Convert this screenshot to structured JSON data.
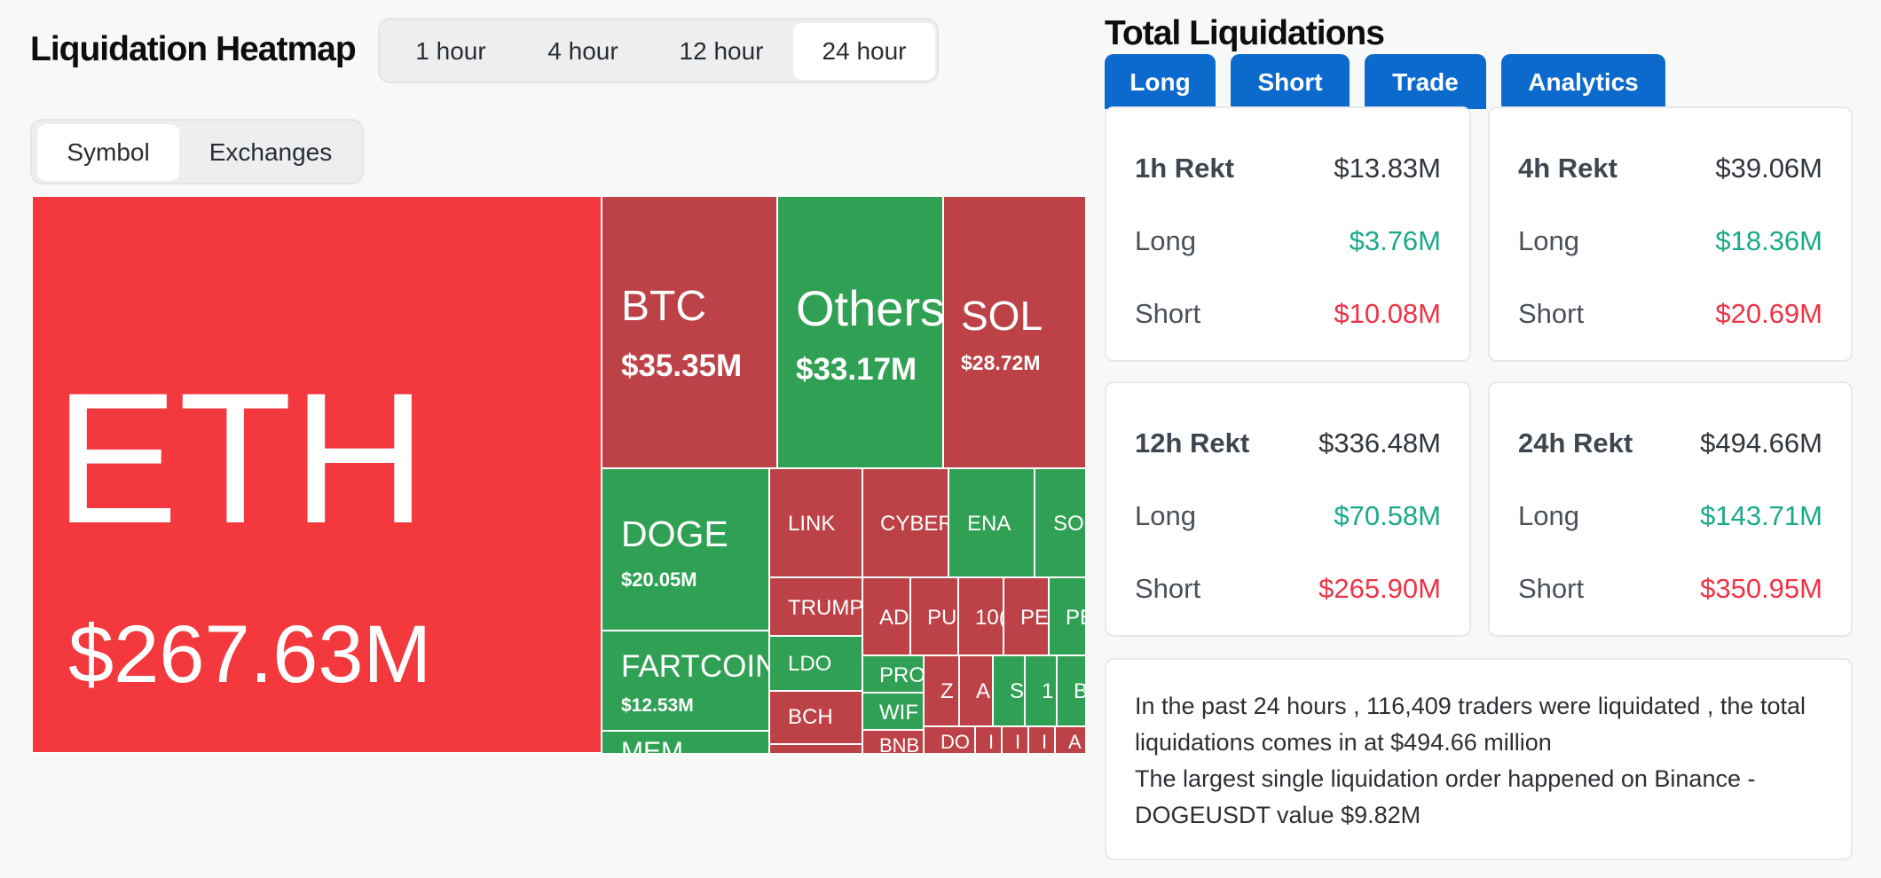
{
  "heatmap": {
    "title": "Liquidation Heatmap",
    "time_tabs": [
      "1 hour",
      "4 hour",
      "12 hour",
      "24 hour"
    ],
    "active_time_tab": "24 hour",
    "view_tabs": [
      "Symbol",
      "Exchanges"
    ],
    "active_view_tab": "Symbol",
    "cells": {
      "eth": {
        "symbol": "ETH",
        "value": "$267.63M",
        "color": "#f3383e"
      },
      "btc": {
        "symbol": "BTC",
        "value": "$35.35M",
        "color": "#bd4247"
      },
      "others": {
        "symbol": "Others",
        "value": "$33.17M",
        "color": "#30a154"
      },
      "sol": {
        "symbol": "SOL",
        "value": "$28.72M",
        "color": "#bd4247"
      },
      "doge": {
        "symbol": "DOGE",
        "value": "$20.05M",
        "color": "#30a154"
      },
      "fartcoin": {
        "symbol": "FARTCOIN",
        "value": "$12.53M",
        "color": "#30a154"
      },
      "link": {
        "symbol": "LINK"
      },
      "cyber": {
        "symbol": "CYBER"
      },
      "ena": {
        "symbol": "ENA"
      },
      "soc": {
        "symbol": "SOC"
      },
      "trump": {
        "symbol": "TRUMP"
      },
      "ldo": {
        "symbol": "LDO"
      },
      "bch": {
        "symbol": "BCH"
      },
      "ad": {
        "symbol": "AD"
      },
      "pu": {
        "symbol": "PU"
      },
      "n10": {
        "symbol": "10("
      },
      "pe1": {
        "symbol": "PE"
      },
      "pe2": {
        "symbol": "PE"
      },
      "pro": {
        "symbol": "PRO"
      },
      "wif": {
        "symbol": "WIF"
      },
      "bnb": {
        "symbol": "BNB"
      },
      "z": {
        "symbol": "Z"
      },
      "a1": {
        "symbol": "A"
      },
      "s": {
        "symbol": "S"
      },
      "one": {
        "symbol": "1"
      },
      "b": {
        "symbol": "B"
      },
      "do": {
        "symbol": "DO"
      },
      "i1": {
        "symbol": "I"
      },
      "i2": {
        "symbol": "I"
      },
      "i3": {
        "symbol": "I"
      },
      "a2": {
        "symbol": "A"
      },
      "mem": {
        "symbol": "MEM"
      }
    }
  },
  "total_liquidations": {
    "title": "Total Liquidations",
    "buttons": [
      "Long",
      "Short",
      "Trade",
      "Analytics"
    ],
    "cards": [
      {
        "title": "1h Rekt",
        "total": "$13.83M",
        "long_label": "Long",
        "long": "$3.76M",
        "short_label": "Short",
        "short": "$10.08M"
      },
      {
        "title": "4h Rekt",
        "total": "$39.06M",
        "long_label": "Long",
        "long": "$18.36M",
        "short_label": "Short",
        "short": "$20.69M"
      },
      {
        "title": "12h Rekt",
        "total": "$336.48M",
        "long_label": "Long",
        "long": "$70.58M",
        "short_label": "Short",
        "short": "$265.90M"
      },
      {
        "title": "24h Rekt",
        "total": "$494.66M",
        "long_label": "Long",
        "long": "$143.71M",
        "short_label": "Short",
        "short": "$350.95M"
      }
    ],
    "summary_line1": "In the past 24 hours , 116,409 traders were liquidated , the total liquidations comes in at $494.66 million",
    "summary_line2": "The largest single liquidation order happened on Binance - DOGEUSDT value $9.82M"
  },
  "colors": {
    "long_green": "#1aa98a",
    "short_red": "#ee3346",
    "accent_blue": "#0b6acc"
  }
}
